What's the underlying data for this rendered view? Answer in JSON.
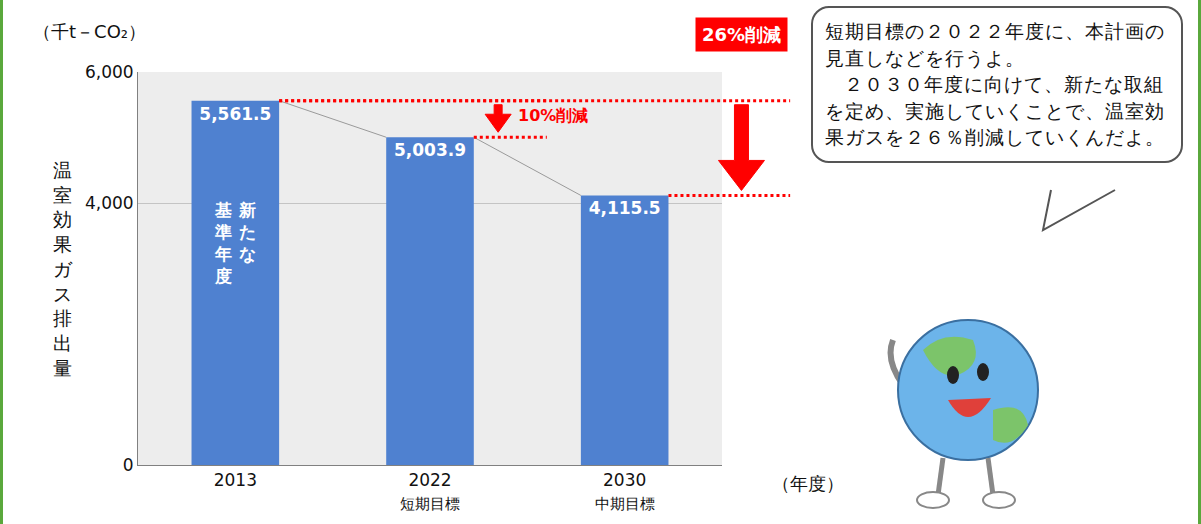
{
  "chart_data": {
    "type": "bar",
    "y_axis_label": "温室効果ガス排出量",
    "y_unit": "（千t－CO₂）",
    "x_unit": "（年度）",
    "categories": [
      "2013",
      "2022",
      "2030"
    ],
    "category_notes": [
      null,
      "短期目標",
      "中期目標"
    ],
    "values": [
      5561.5,
      5003.9,
      4115.5
    ],
    "value_labels": [
      "5,561.5",
      "5,003.9",
      "4,115.5"
    ],
    "data_labels": true,
    "color": "#4f81d0",
    "ylim": [
      0,
      6000
    ],
    "yticks": [
      0,
      {
        "value": 4000,
        "label": "4,000"
      },
      {
        "value": 6000,
        "label": "6,000"
      }
    ],
    "grid": true,
    "bar_note": {
      "category": "2013",
      "lines": [
        "新たな",
        "基準年度"
      ]
    },
    "reductions": [
      {
        "from": "2013",
        "to": "2022",
        "label": "10%削減"
      },
      {
        "from": "2013",
        "to": "2030",
        "label": "26%削減"
      }
    ]
  },
  "speech_bubble": [
    "短期目標の２０２２年度に、本計画の見直しなどを行うよ。",
    "２０３０年度に向けて、新たな取組を定め、実施していくことで、温室効果ガスを２６％削減していくんだよ。"
  ]
}
